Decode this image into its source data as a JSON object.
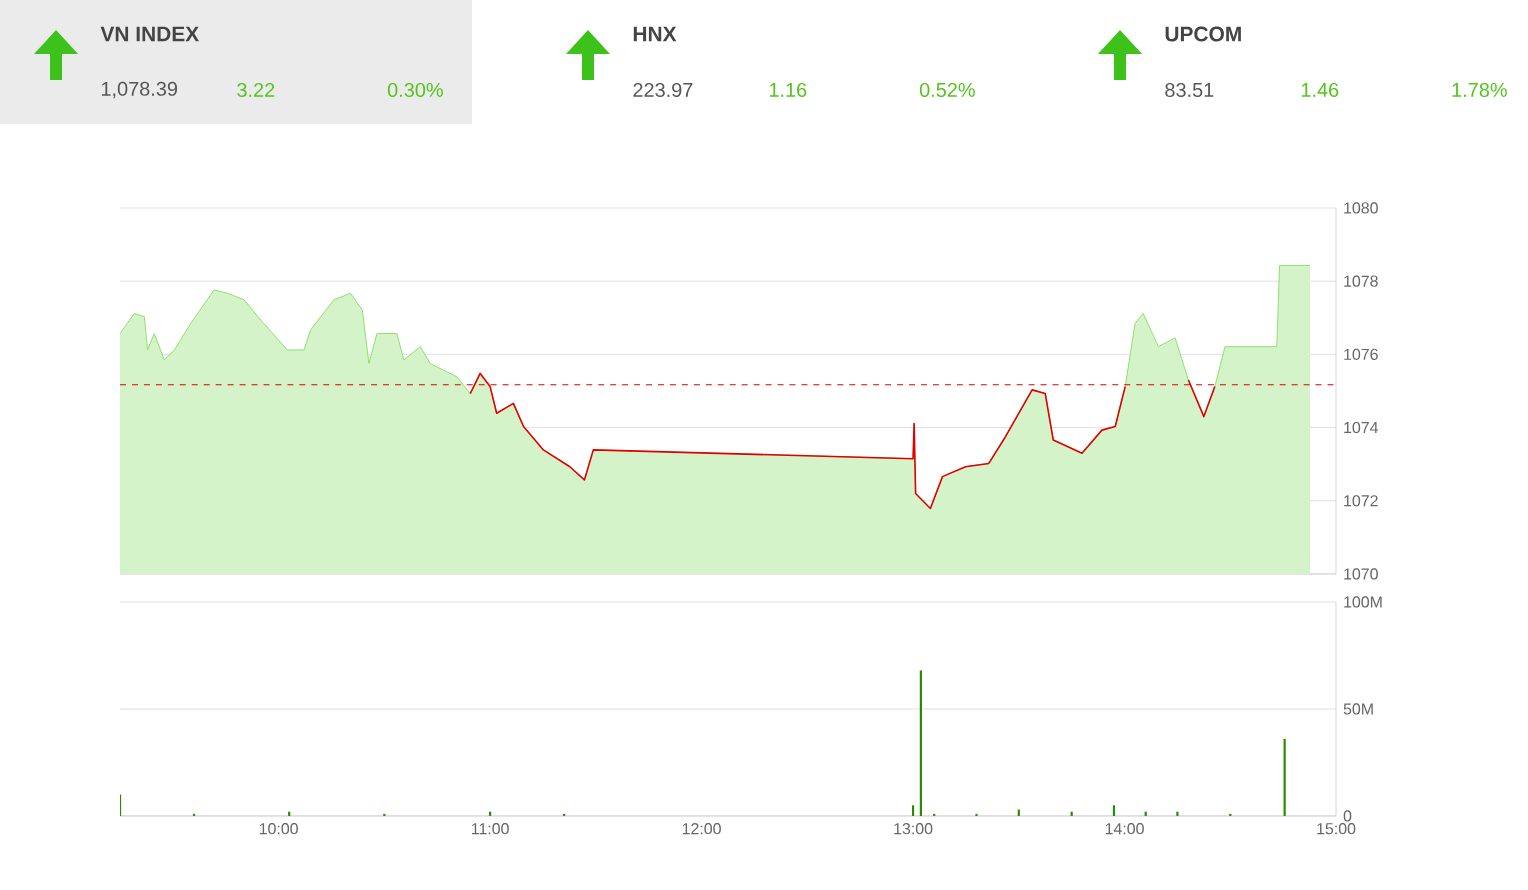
{
  "chart_data": [
    {
      "type": "other",
      "title": "VN INDEX",
      "annotations": [
        "1,078.39",
        "3.22",
        "0.30%"
      ]
    },
    {
      "type": "other",
      "title": "HNX",
      "annotations": [
        "223.97",
        "1.16",
        "0.52%"
      ]
    },
    {
      "type": "other",
      "title": "UPCOM",
      "annotations": [
        "83.51",
        "1.46",
        "1.78%"
      ]
    },
    {
      "type": "area",
      "xlim": [
        9.25,
        15
      ],
      "ylim": [
        1070,
        1080
      ],
      "yticks": [
        1070,
        1072,
        1074,
        1076,
        1078,
        1080
      ],
      "grid": "y",
      "tick_labels": "y",
      "ref_lines": [
        {
          "axis": "y",
          "value": 1075.17,
          "color": "#e00000",
          "line_style": "dashed"
        }
      ],
      "series": [
        {
          "type": "area",
          "color": "#8fe06f",
          "x": [
            9.25,
            9.318,
            9.365,
            9.38,
            9.412,
            9.459,
            9.507,
            9.585,
            9.695,
            9.758,
            9.837,
            9.915,
            10.041,
            10.12,
            10.151,
            10.261,
            10.34,
            10.396,
            10.427,
            10.465,
            10.559,
            10.592,
            10.67,
            10.717,
            10.842,
            10.906,
            10.953,
            11.0,
            11.031,
            11.11,
            11.158,
            11.252,
            11.377,
            11.446,
            11.488,
            13.0,
            13.005,
            13.012,
            13.082,
            13.139,
            13.248,
            13.358,
            13.437,
            13.563,
            13.625,
            13.663,
            13.799,
            13.893,
            13.956,
            14.003,
            14.05,
            14.088,
            14.16,
            14.239,
            14.302,
            14.375,
            14.427,
            14.475,
            14.72,
            14.733,
            14.877
          ],
          "values": [
            1076.57,
            1077.12,
            1077.03,
            1076.12,
            1076.57,
            1075.85,
            1076.12,
            1076.85,
            1077.76,
            1077.67,
            1077.49,
            1076.94,
            1076.12,
            1076.12,
            1076.67,
            1077.49,
            1077.67,
            1077.21,
            1075.75,
            1076.57,
            1076.57,
            1075.85,
            1076.21,
            1075.75,
            1075.39,
            1074.93,
            1075.48,
            1075.12,
            1074.39,
            1074.66,
            1074.03,
            1073.39,
            1072.93,
            1072.57,
            1073.39,
            1073.15,
            1074.11,
            1072.2,
            1071.79,
            1072.66,
            1072.93,
            1073.02,
            1073.75,
            1075.03,
            1074.93,
            1073.66,
            1073.3,
            1073.93,
            1074.03,
            1075.12,
            1076.85,
            1077.12,
            1076.21,
            1076.45,
            1075.3,
            1074.3,
            1075.12,
            1076.21,
            1076.21,
            1078.43,
            1078.43
          ]
        },
        {
          "type": "line",
          "color": "#e00000",
          "x": [
            10.906,
            10.953,
            11.0,
            11.031,
            11.11,
            11.158,
            11.252,
            11.377,
            11.446,
            11.488,
            13.0,
            13.005,
            13.012,
            13.082,
            13.139,
            13.248,
            13.358,
            13.437,
            13.563,
            13.625,
            13.663,
            13.799,
            13.893,
            13.956,
            14.003,
            14.05,
            14.302,
            14.375,
            14.427
          ],
          "values": [
            1074.93,
            1075.48,
            1075.12,
            1074.39,
            1074.66,
            1074.03,
            1073.39,
            1072.93,
            1072.57,
            1073.39,
            1073.15,
            1074.11,
            1072.2,
            1071.79,
            1072.66,
            1072.93,
            1073.02,
            1073.75,
            1075.03,
            1074.93,
            1073.66,
            1073.3,
            1073.93,
            1074.03,
            1075.12,
            null,
            1075.3,
            1074.3,
            1075.12
          ]
        }
      ]
    },
    {
      "type": "bar",
      "xlim": [
        9.25,
        15
      ],
      "ylim": [
        0,
        100
      ],
      "grid": "y",
      "xticks": [
        {
          "value": 10,
          "label": "10:00"
        },
        {
          "value": 11,
          "label": "11:00"
        },
        {
          "value": 12,
          "label": "12:00"
        },
        {
          "value": 13,
          "label": "13:00"
        },
        {
          "value": 14,
          "label": "14:00"
        },
        {
          "value": 15,
          "label": "15:00"
        }
      ],
      "yticks": [
        {
          "value": 0,
          "label": "0"
        },
        {
          "value": 50,
          "label": "50M"
        },
        {
          "value": 100,
          "label": "100M"
        }
      ],
      "series": [
        {
          "type": "bar",
          "color": "#2a8a00",
          "x": [
            9.25,
            9.6,
            10.05,
            10.5,
            11.0,
            11.35,
            13.0,
            13.037,
            13.1,
            13.3,
            13.5,
            13.75,
            13.95,
            14.1,
            14.25,
            14.5,
            14.757
          ],
          "values": [
            10,
            1,
            2,
            1,
            2,
            1,
            5,
            68,
            1,
            1,
            3,
            2,
            5,
            2,
            2,
            1,
            36
          ]
        }
      ]
    }
  ]
}
